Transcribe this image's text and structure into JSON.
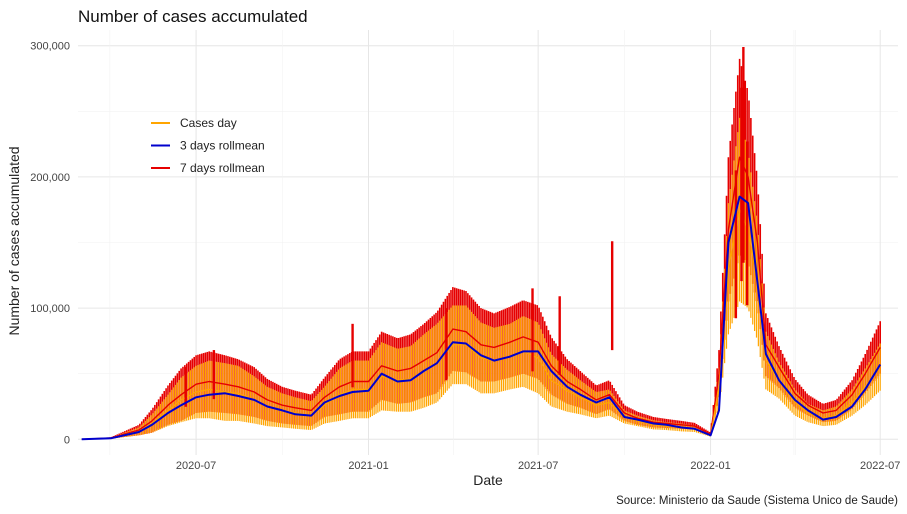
{
  "chart_data": {
    "type": "line",
    "title": "Number of cases accumulated",
    "xlabel": "Date",
    "ylabel": "Number of cases accumulated",
    "caption": "Source: Ministerio da Saude (Sistema Unico de Saude)",
    "xlim": [
      "2020-02-26",
      "2022-07-20"
    ],
    "ylim": [
      -12000,
      312000
    ],
    "x_ticks": [
      "2020-07-01",
      "2021-01-01",
      "2021-07-01",
      "2022-01-01",
      "2022-07-01"
    ],
    "x_tick_labels": [
      "2020-07",
      "2021-01",
      "2021-07",
      "2022-01",
      "2022-07"
    ],
    "y_ticks": [
      0,
      100000,
      200000,
      300000
    ],
    "y_tick_labels": [
      "0",
      "100,000",
      "200,000",
      "300,000"
    ],
    "grid": true,
    "legend_position": "top-left",
    "x": [
      "2020-03-01",
      "2020-04-01",
      "2020-05-01",
      "2020-05-15",
      "2020-06-01",
      "2020-06-15",
      "2020-07-01",
      "2020-07-15",
      "2020-08-01",
      "2020-08-15",
      "2020-09-01",
      "2020-09-15",
      "2020-10-01",
      "2020-10-15",
      "2020-11-01",
      "2020-11-15",
      "2020-12-01",
      "2020-12-15",
      "2021-01-01",
      "2021-01-15",
      "2021-02-01",
      "2021-02-15",
      "2021-03-01",
      "2021-03-15",
      "2021-04-01",
      "2021-04-15",
      "2021-05-01",
      "2021-05-15",
      "2021-06-01",
      "2021-06-15",
      "2021-07-01",
      "2021-07-15",
      "2021-08-01",
      "2021-08-15",
      "2021-09-01",
      "2021-09-15",
      "2021-10-01",
      "2021-10-15",
      "2021-11-01",
      "2021-11-15",
      "2021-12-01",
      "2021-12-15",
      "2022-01-01",
      "2022-01-10",
      "2022-01-20",
      "2022-02-01",
      "2022-02-10",
      "2022-02-20",
      "2022-03-01",
      "2022-03-15",
      "2022-04-01",
      "2022-04-15",
      "2022-05-01",
      "2022-05-15",
      "2022-06-01",
      "2022-06-15",
      "2022-07-01"
    ],
    "series": [
      {
        "name": "Cases day",
        "color": "#FFA500",
        "values": [
          0,
          800,
          6000,
          12000,
          22000,
          30000,
          36000,
          38000,
          36000,
          35000,
          30000,
          25000,
          22000,
          20000,
          18000,
          26000,
          34000,
          38000,
          38000,
          48000,
          45000,
          46000,
          52000,
          58000,
          72000,
          72000,
          62000,
          60000,
          63000,
          67000,
          62000,
          45000,
          37000,
          32000,
          26000,
          28000,
          17000,
          14000,
          11000,
          10000,
          9000,
          8000,
          3000,
          40000,
          130000,
          175000,
          160000,
          120000,
          60000,
          45000,
          28000,
          20000,
          16000,
          18000,
          28000,
          40000,
          55000
        ],
        "band": [
          0,
          400,
          3000,
          7000,
          12000,
          17000,
          20000,
          22000,
          22000,
          21000,
          18000,
          15000,
          13000,
          12000,
          11000,
          14000,
          20000,
          22000,
          22000,
          26000,
          24000,
          25000,
          28000,
          30000,
          30000,
          30000,
          27000,
          25000,
          25000,
          27000,
          27000,
          20000,
          16000,
          13000,
          10000,
          10000,
          5000,
          4000,
          3500,
          3000,
          3000,
          2500,
          1000,
          15000,
          50000,
          70000,
          60000,
          45000,
          22000,
          14000,
          10000,
          7000,
          6000,
          7000,
          10000,
          14000,
          18000
        ]
      },
      {
        "name": "3 days rollmean",
        "color": "#0000CD",
        "values": [
          0,
          700,
          5500,
          11000,
          20000,
          26000,
          32000,
          34000,
          35000,
          33000,
          30000,
          25000,
          22000,
          19000,
          18000,
          28000,
          33000,
          36000,
          37000,
          50000,
          44000,
          45000,
          52000,
          58000,
          74000,
          73000,
          64000,
          60000,
          63000,
          67000,
          67000,
          52000,
          40000,
          34000,
          28000,
          32000,
          17000,
          15000,
          12000,
          11000,
          9000,
          8000,
          3000,
          22000,
          150000,
          185000,
          180000,
          120000,
          65000,
          45000,
          30000,
          22000,
          15000,
          17000,
          25000,
          38000,
          57000
        ]
      },
      {
        "name": "7 days rollmean",
        "color": "#E60000",
        "values": [
          0,
          1000,
          7000,
          14000,
          26000,
          34000,
          42000,
          44000,
          42000,
          40000,
          36000,
          30000,
          26000,
          24000,
          22000,
          32000,
          40000,
          44000,
          44000,
          56000,
          52000,
          54000,
          60000,
          66000,
          84000,
          82000,
          72000,
          70000,
          74000,
          78000,
          74000,
          56000,
          44000,
          38000,
          30000,
          34000,
          20000,
          16000,
          13000,
          12000,
          11000,
          10000,
          4000,
          50000,
          160000,
          215000,
          200000,
          150000,
          72000,
          55000,
          35000,
          26000,
          20000,
          22000,
          34000,
          50000,
          70000
        ],
        "band": [
          0,
          500,
          4000,
          9000,
          15000,
          20000,
          22000,
          23000,
          22000,
          21000,
          19000,
          16000,
          14000,
          13000,
          12000,
          15000,
          21000,
          23000,
          23000,
          26000,
          25000,
          26000,
          28000,
          31000,
          32000,
          31000,
          28000,
          26000,
          27000,
          28000,
          28000,
          22000,
          17000,
          14000,
          11000,
          11000,
          6000,
          5000,
          4000,
          3500,
          3000,
          2500,
          1200,
          18000,
          55000,
          75000,
          65000,
          48000,
          24000,
          16000,
          11000,
          8000,
          7000,
          8000,
          11000,
          15000,
          20000
        ]
      }
    ],
    "spikes": [
      {
        "x": "2020-06-20",
        "value": 55000
      },
      {
        "x": "2020-07-20",
        "value": 68000
      },
      {
        "x": "2020-12-15",
        "value": 88000
      },
      {
        "x": "2021-03-25",
        "value": 100000
      },
      {
        "x": "2021-06-25",
        "value": 115000
      },
      {
        "x": "2021-07-24",
        "value": 109000
      },
      {
        "x": "2021-09-18",
        "value": 151000
      },
      {
        "x": "2022-01-28",
        "value": 205000
      },
      {
        "x": "2022-02-03",
        "value": 268000
      },
      {
        "x": "2022-02-05",
        "value": 299000
      },
      {
        "x": "2022-02-09",
        "value": 227000
      }
    ]
  }
}
